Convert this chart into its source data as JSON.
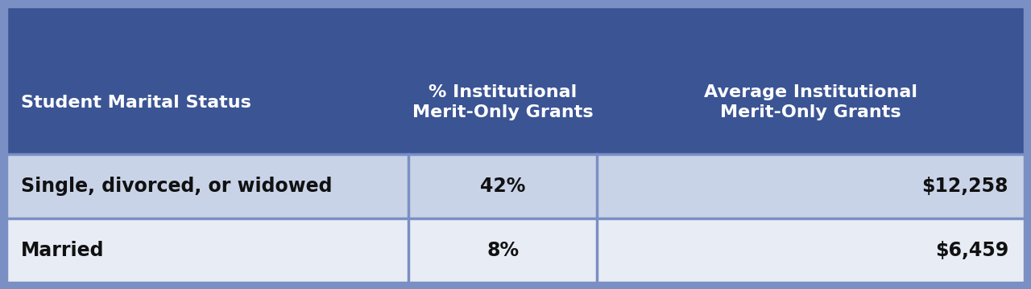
{
  "header_bg_color": "#3B5494",
  "header_text_color": "#FFFFFF",
  "row1_bg_color": "#C9D3E8",
  "row2_bg_color": "#E8ECF5",
  "border_color": "#7A8FC4",
  "fig_bg_color": "#7A8FC4",
  "col1_header": "Student Marital Status",
  "col2_header": "% Institutional\nMerit-Only Grants",
  "col3_header": "Average Institutional\nMerit-Only Grants",
  "rows": [
    [
      "Single, divorced, or widowed",
      "42%",
      "$12,258"
    ],
    [
      "Married",
      "8%",
      "$6,459"
    ]
  ],
  "header_fontsize": 16,
  "row_fontsize": 17,
  "fig_width": 12.8,
  "fig_height": 3.6
}
